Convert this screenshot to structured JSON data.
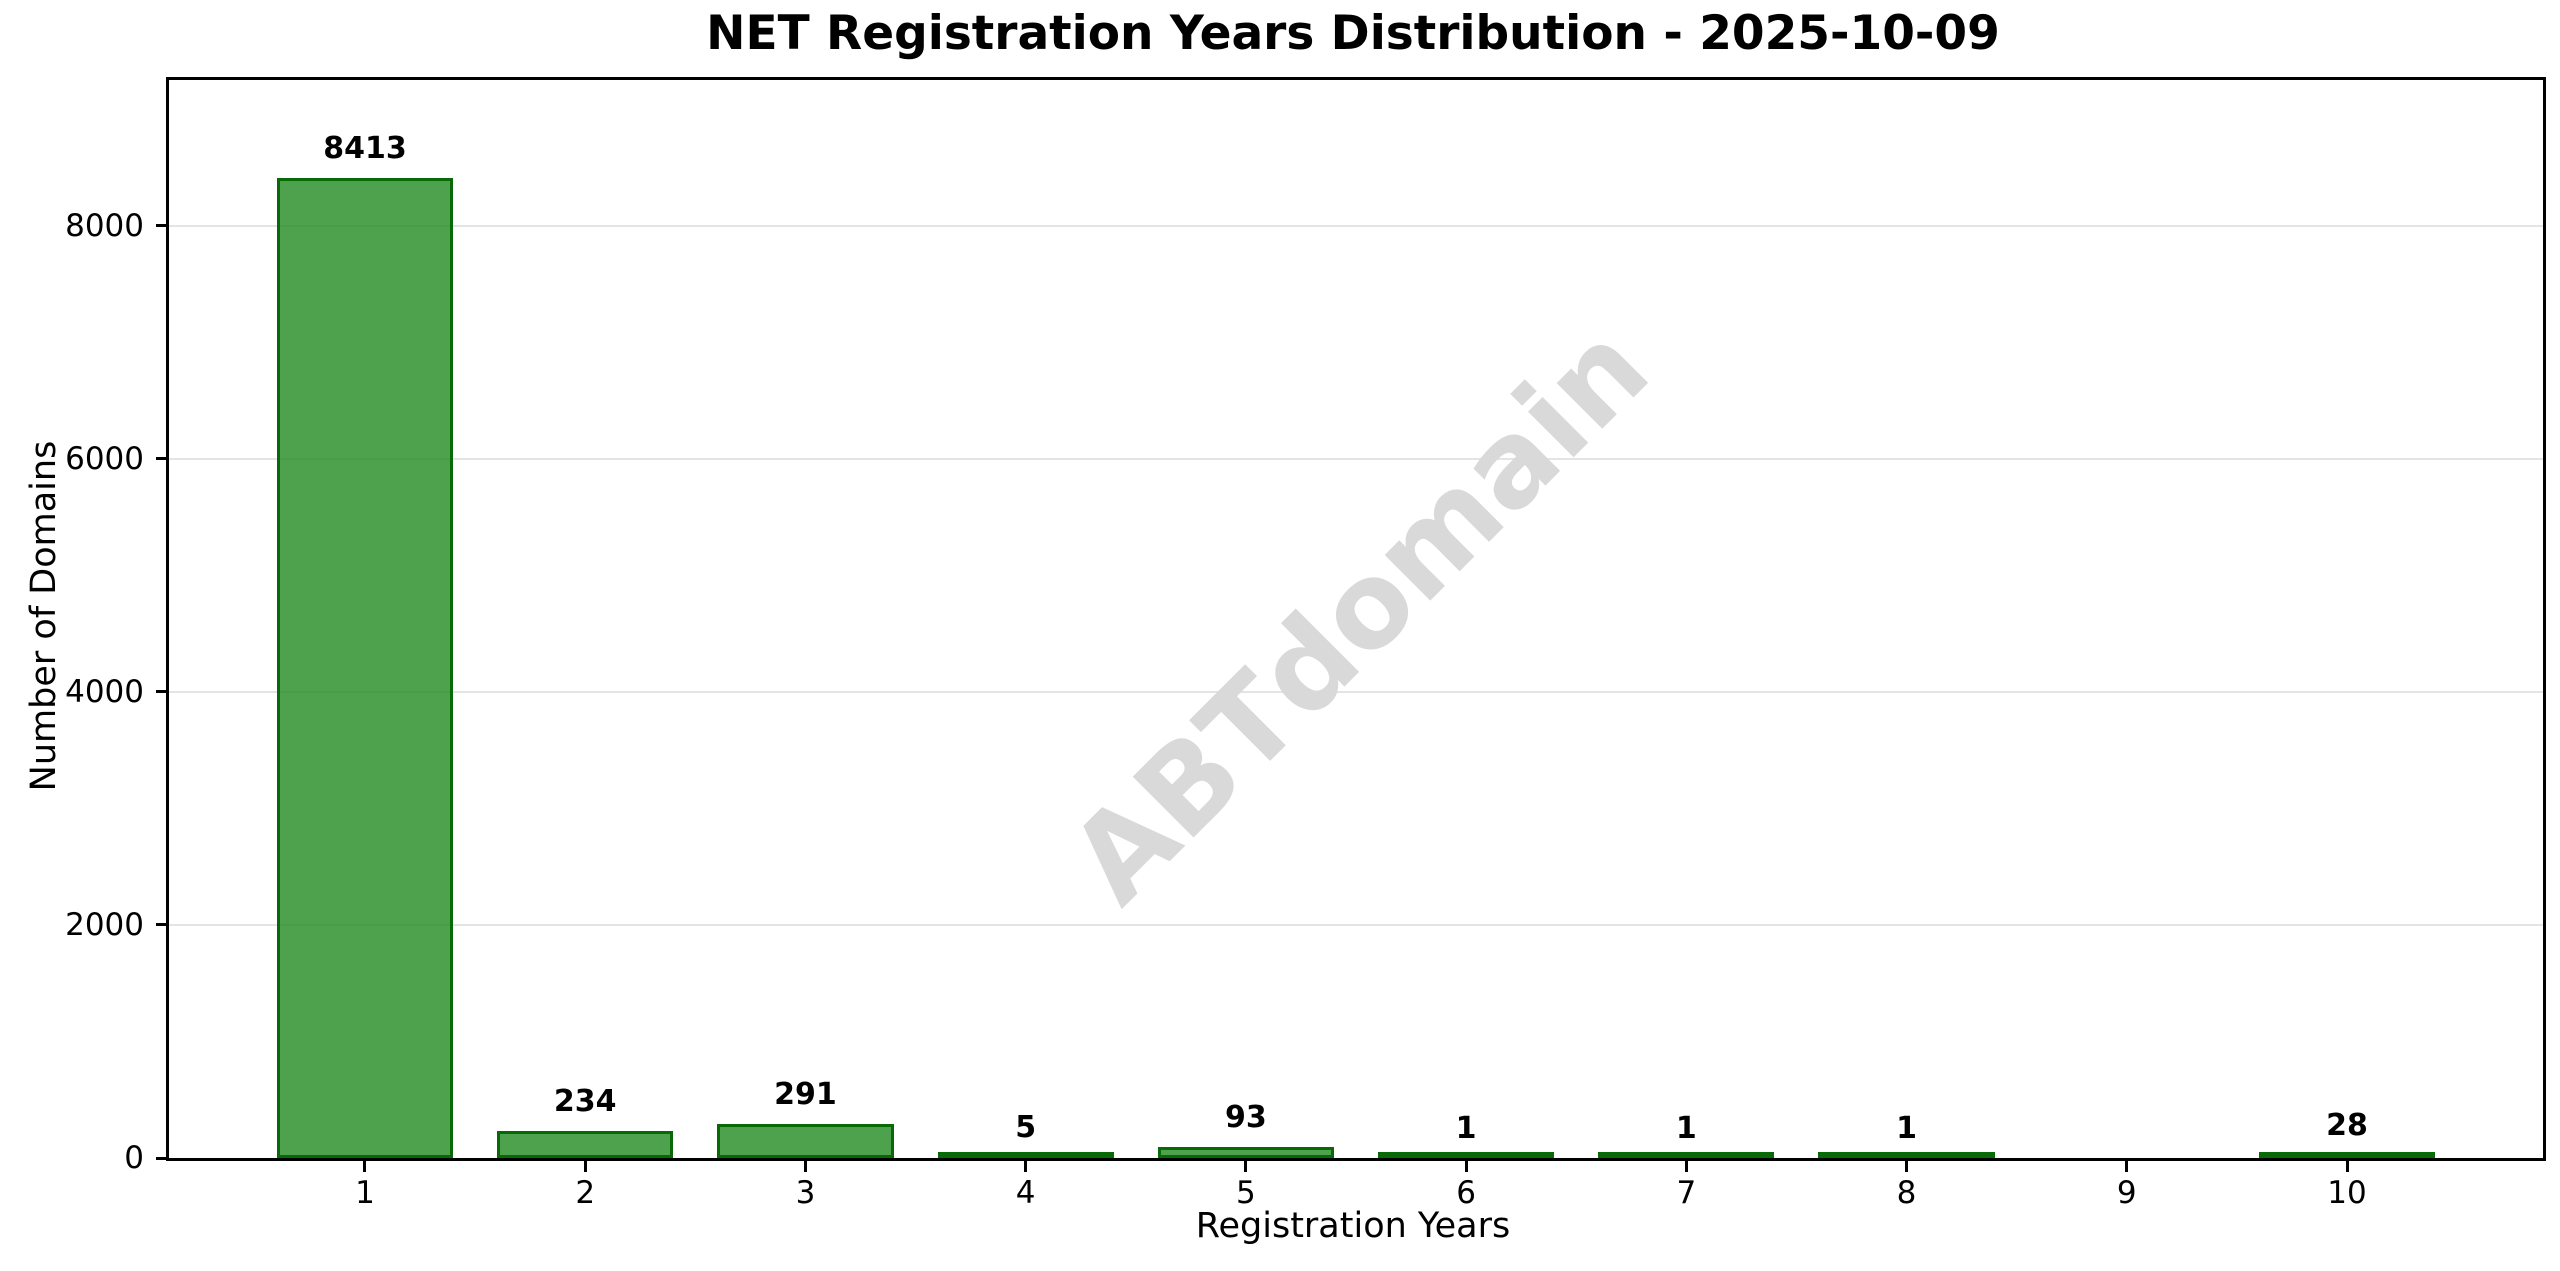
{
  "chart_data": {
    "type": "bar",
    "title": "NET Registration Years Distribution - 2025-10-09",
    "xlabel": "Registration Years",
    "ylabel": "Number of Domains",
    "categories": [
      "1",
      "2",
      "3",
      "4",
      "5",
      "6",
      "7",
      "8",
      "9",
      "10"
    ],
    "values": [
      8413,
      234,
      291,
      5,
      93,
      1,
      1,
      1,
      0,
      28
    ],
    "bar_labels": [
      "8413",
      "234",
      "291",
      "5",
      "93",
      "1",
      "1",
      "1",
      "",
      "28"
    ],
    "yticks": [
      0,
      2000,
      4000,
      6000,
      8000
    ],
    "ytick_labels": [
      "0",
      "2000",
      "4000",
      "6000",
      "8000"
    ],
    "ylim": [
      0,
      9250
    ],
    "xlim": [
      0.11,
      10.89
    ],
    "bar_width_units": 0.8,
    "grid": "horizontal-only",
    "legend": "none",
    "watermark": "ABTdomain",
    "colors": {
      "bar_fill": "rgba(34,139,34,0.8)",
      "bar_edge": "rgba(0,100,0,0.9)",
      "gridline": "#e4e4e4",
      "axis": "#000000",
      "text": "#000000",
      "watermark": "#d9d9d9",
      "background": "#ffffff"
    }
  }
}
